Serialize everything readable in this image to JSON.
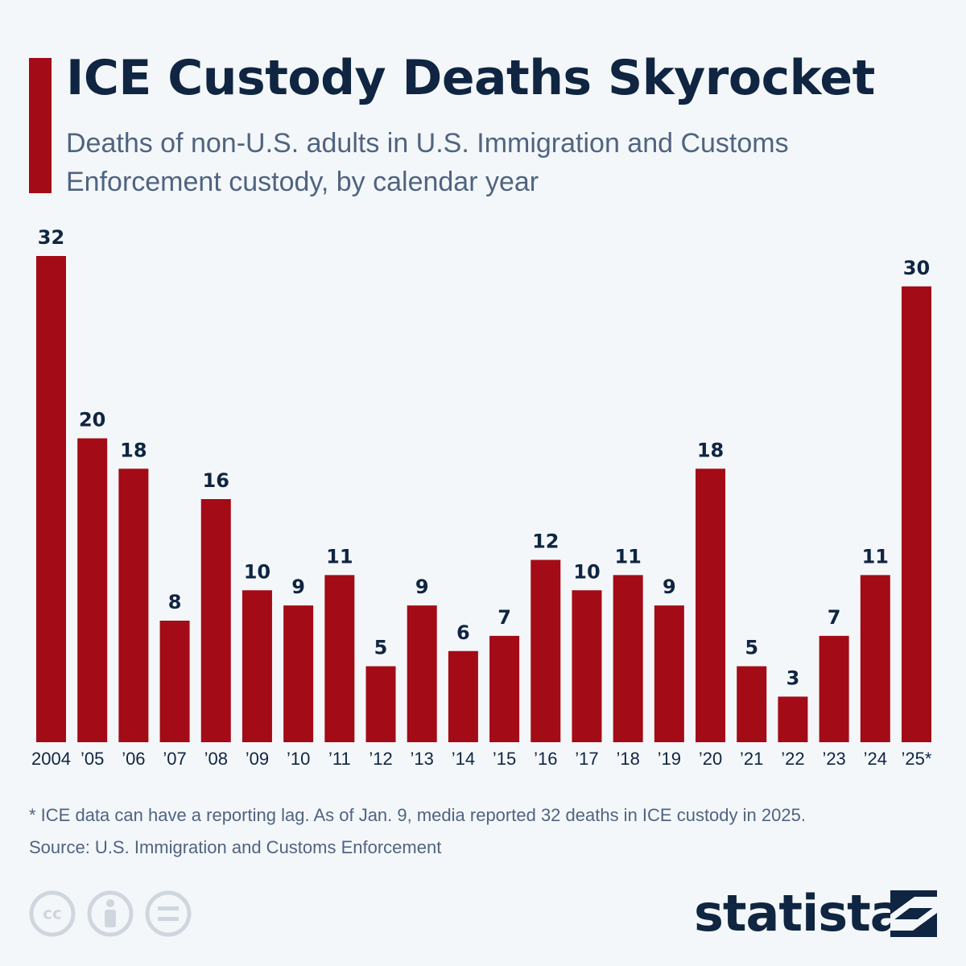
{
  "chart_data": {
    "type": "bar",
    "title": "ICE Custody Deaths Skyrocket",
    "subtitle": "Deaths of non-U.S. adults in U.S. Immigration and Customs Enforcement custody, by calendar year",
    "categories": [
      "2004",
      "’05",
      "’06",
      "’07",
      "’08",
      "’09",
      "’10",
      "’11",
      "’12",
      "’13",
      "’14",
      "’15",
      "’16",
      "’17",
      "’18",
      "’19",
      "’20",
      "’21",
      "’22",
      "’23",
      "’24",
      "’25*"
    ],
    "values": [
      32,
      20,
      18,
      8,
      16,
      10,
      9,
      11,
      5,
      9,
      6,
      7,
      12,
      10,
      11,
      9,
      18,
      5,
      3,
      7,
      11,
      30
    ],
    "color": "#a30b16",
    "ylim": [
      0,
      32
    ],
    "footnote": "* ICE data can have a reporting lag. As of Jan. 9, media reported 32 deaths in ICE custody in 2025.",
    "source": "Source: U.S. Immigration and Customs Enforcement",
    "brand": "statista"
  }
}
